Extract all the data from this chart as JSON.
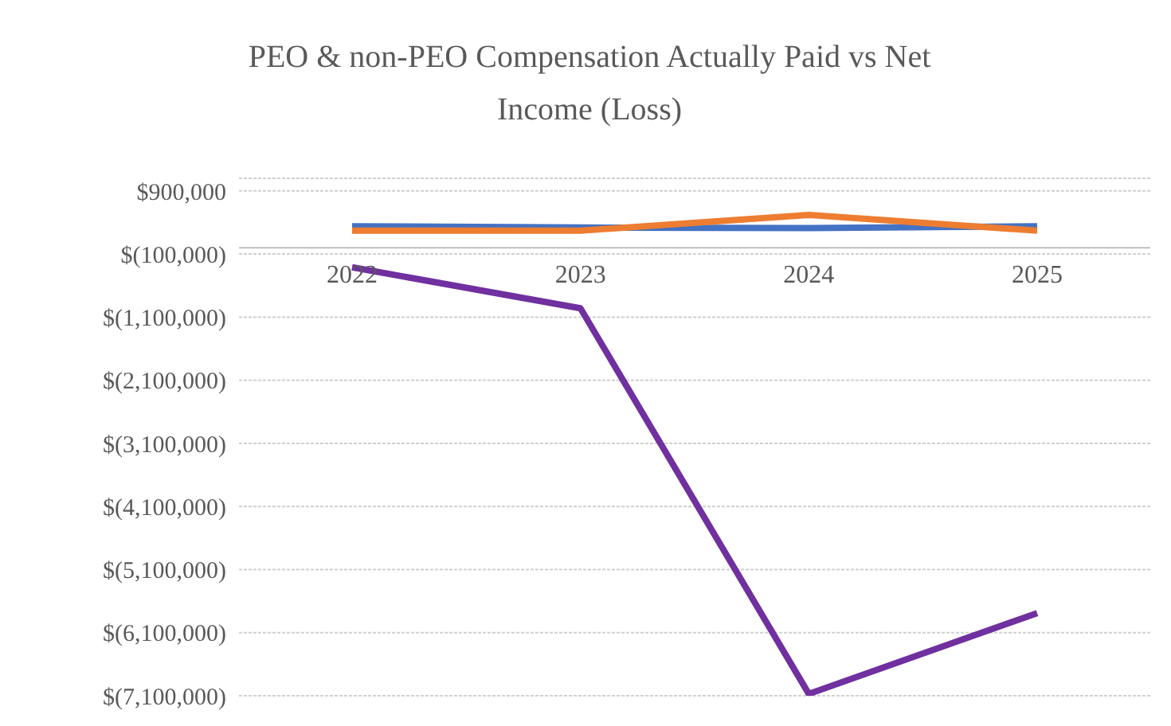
{
  "chart_data": {
    "type": "line",
    "title": "PEO & non-PEO Compensation Actually Paid vs Net Income (Loss)",
    "categories": [
      "2022",
      "2023",
      "2024",
      "2025"
    ],
    "series": [
      {
        "color": "#4472c4",
        "values": [
          340000,
          320000,
          310000,
          340000
        ]
      },
      {
        "color": "#ed7d31",
        "values": [
          270000,
          270000,
          520000,
          270000
        ]
      },
      {
        "color": "#7030a0",
        "values": [
          -310000,
          -960000,
          -7070000,
          -5790000
        ]
      }
    ],
    "ylim": [
      -7100000,
      1100000
    ],
    "yticks": [
      {
        "value": 900000,
        "label": "$900,000"
      },
      {
        "value": -100000,
        "label": "$(100,000)"
      },
      {
        "value": -1100000,
        "label": "$(1,100,000)"
      },
      {
        "value": -2100000,
        "label": "$(2,100,000)"
      },
      {
        "value": -3100000,
        "label": "$(3,100,000)"
      },
      {
        "value": -4100000,
        "label": "$(4,100,000)"
      },
      {
        "value": -5100000,
        "label": "$(5,100,000)"
      },
      {
        "value": -6100000,
        "label": "$(6,100,000)"
      },
      {
        "value": -7100000,
        "label": "$(7,100,000)"
      }
    ],
    "grid": "y",
    "legend": false,
    "marker": "none",
    "line_style": "solid"
  }
}
